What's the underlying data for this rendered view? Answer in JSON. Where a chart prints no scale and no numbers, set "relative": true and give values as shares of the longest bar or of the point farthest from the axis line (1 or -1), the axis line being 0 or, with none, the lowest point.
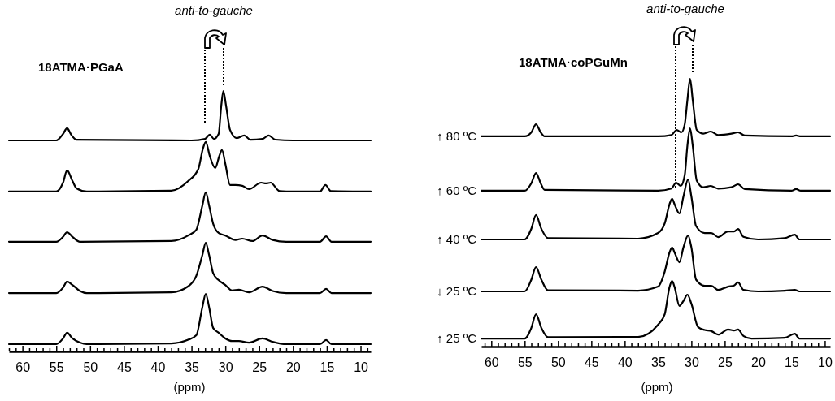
{
  "chart_data": [
    {
      "type": "line",
      "title": "18ATMA·PGaA",
      "xlabel": "(ppm)",
      "relative": true,
      "annotations": [
        "anti-to-gauche"
      ],
      "xlim": [
        62,
        8.5
      ],
      "xticks": [
        {
          "value": 62,
          "label": null
        },
        {
          "value": 61,
          "label": null
        },
        60,
        {
          "value": 59,
          "label": null
        },
        {
          "value": 58,
          "label": null
        },
        {
          "value": 57,
          "label": null
        },
        {
          "value": 56,
          "label": null
        },
        55,
        {
          "value": 54,
          "label": null
        },
        {
          "value": 53,
          "label": null
        },
        {
          "value": 52,
          "label": null
        },
        {
          "value": 51,
          "label": null
        },
        50,
        {
          "value": 49,
          "label": null
        },
        {
          "value": 48,
          "label": null
        },
        {
          "value": 47,
          "label": null
        },
        {
          "value": 46,
          "label": null
        },
        45,
        {
          "value": 44,
          "label": null
        },
        {
          "value": 43,
          "label": null
        },
        {
          "value": 42,
          "label": null
        },
        {
          "value": 41,
          "label": null
        },
        40,
        {
          "value": 39,
          "label": null
        },
        {
          "value": 38,
          "label": null
        },
        {
          "value": 37,
          "label": null
        },
        {
          "value": 36,
          "label": null
        },
        35,
        {
          "value": 34,
          "label": null
        },
        {
          "value": 33,
          "label": null
        },
        {
          "value": 32,
          "label": null
        },
        {
          "value": 31,
          "label": null
        },
        30,
        {
          "value": 29,
          "label": null
        },
        {
          "value": 28,
          "label": null
        },
        {
          "value": 27,
          "label": null
        },
        {
          "value": 26,
          "label": null
        },
        25,
        {
          "value": 24,
          "label": null
        },
        {
          "value": 23,
          "label": null
        },
        {
          "value": 22,
          "label": null
        },
        {
          "value": 21,
          "label": null
        },
        20,
        {
          "value": 19,
          "label": null
        },
        {
          "value": 18,
          "label": null
        },
        {
          "value": 17,
          "label": null
        },
        {
          "value": 16,
          "label": null
        },
        15,
        {
          "value": 14,
          "label": null
        },
        {
          "value": 13,
          "label": null
        },
        {
          "value": 12,
          "label": null
        },
        {
          "value": 11,
          "label": null
        },
        10,
        {
          "value": 9,
          "label": null
        }
      ],
      "series": [
        {
          "color": "#000000",
          "x": [
            62,
            55,
            54,
            53.4,
            52.8,
            52,
            35,
            33,
            32.3,
            31.7,
            31,
            30.6,
            30.3,
            29.9,
            29.3,
            28.3,
            27.2,
            26.3,
            24.5,
            23.6,
            22.6,
            20,
            8.5
          ],
          "values": [
            0.81,
            0.81,
            0.835,
            0.857,
            0.832,
            0.813,
            0.81,
            0.816,
            0.832,
            0.816,
            0.835,
            0.944,
            1.0,
            0.944,
            0.85,
            0.819,
            0.829,
            0.813,
            0.816,
            0.829,
            0.813,
            0.81,
            0.81
          ]
        },
        {
          "color": "#000000",
          "x": [
            62,
            55,
            54,
            53.4,
            52.6,
            52,
            50.5,
            38,
            35.5,
            34,
            33.3,
            32.9,
            32.3,
            31.5,
            30.9,
            30.5,
            30,
            29.3,
            28.5,
            27.5,
            26.5,
            24.7,
            24,
            23.3,
            22,
            20,
            16,
            15.2,
            14.4,
            8.5
          ],
          "values": [
            0.614,
            0.614,
            0.648,
            0.695,
            0.654,
            0.626,
            0.614,
            0.617,
            0.654,
            0.7,
            0.78,
            0.804,
            0.75,
            0.704,
            0.75,
            0.773,
            0.72,
            0.639,
            0.639,
            0.636,
            0.623,
            0.648,
            0.645,
            0.648,
            0.616,
            0.614,
            0.614,
            0.639,
            0.616,
            0.614
          ]
        },
        {
          "color": "#000000",
          "x": [
            62,
            55,
            54,
            53.4,
            52.6,
            51.5,
            38,
            35.5,
            34.3,
            33.4,
            32.9,
            32.4,
            31.8,
            31,
            30,
            28.5,
            27.5,
            26,
            24.5,
            23,
            21,
            16,
            15.1,
            14.3,
            8.5
          ],
          "values": [
            0.421,
            0.421,
            0.44,
            0.458,
            0.44,
            0.421,
            0.424,
            0.445,
            0.467,
            0.56,
            0.611,
            0.56,
            0.49,
            0.455,
            0.445,
            0.428,
            0.433,
            0.424,
            0.445,
            0.428,
            0.421,
            0.421,
            0.442,
            0.421,
            0.421
          ]
        },
        {
          "color": "#000000",
          "x": [
            62,
            55,
            54,
            53.4,
            52.6,
            51.5,
            50.5,
            38,
            35.5,
            34.3,
            33.4,
            32.9,
            32.4,
            31.8,
            31,
            30,
            29,
            28,
            26.5,
            24.5,
            23,
            21,
            16,
            15.1,
            14.3,
            8.5
          ],
          "values": [
            0.224,
            0.224,
            0.245,
            0.268,
            0.255,
            0.232,
            0.224,
            0.227,
            0.25,
            0.29,
            0.37,
            0.417,
            0.37,
            0.3,
            0.274,
            0.255,
            0.234,
            0.237,
            0.227,
            0.249,
            0.232,
            0.224,
            0.224,
            0.24,
            0.224,
            0.224
          ]
        },
        {
          "color": "#000000",
          "x": [
            62,
            55,
            54,
            53.4,
            52.6,
            51.5,
            50.5,
            38,
            35.5,
            34.3,
            33.4,
            32.9,
            32.4,
            31.8,
            31,
            30,
            29,
            28,
            26.5,
            24.5,
            23,
            21,
            16,
            15.1,
            14.3,
            8.5
          ],
          "values": [
            0.028,
            0.028,
            0.05,
            0.072,
            0.05,
            0.034,
            0.028,
            0.031,
            0.045,
            0.062,
            0.17,
            0.221,
            0.17,
            0.09,
            0.072,
            0.05,
            0.04,
            0.04,
            0.034,
            0.05,
            0.037,
            0.028,
            0.028,
            0.044,
            0.028,
            0.028
          ]
        }
      ]
    },
    {
      "type": "line",
      "title": "18ATMA·coPGuMn",
      "xlabel": "(ppm)",
      "relative": true,
      "annotations": [
        "anti-to-gauche"
      ],
      "xlim": [
        61.5,
        9.2
      ],
      "xticks": [
        {
          "value": 61,
          "label": null
        },
        60,
        {
          "value": 59,
          "label": null
        },
        {
          "value": 58,
          "label": null
        },
        {
          "value": 57,
          "label": null
        },
        {
          "value": 56,
          "label": null
        },
        55,
        {
          "value": 54,
          "label": null
        },
        {
          "value": 53,
          "label": null
        },
        {
          "value": 52,
          "label": null
        },
        {
          "value": 51,
          "label": null
        },
        50,
        {
          "value": 49,
          "label": null
        },
        {
          "value": 48,
          "label": null
        },
        {
          "value": 47,
          "label": null
        },
        {
          "value": 46,
          "label": null
        },
        45,
        {
          "value": 44,
          "label": null
        },
        {
          "value": 43,
          "label": null
        },
        {
          "value": 42,
          "label": null
        },
        {
          "value": 41,
          "label": null
        },
        40,
        {
          "value": 39,
          "label": null
        },
        {
          "value": 38,
          "label": null
        },
        {
          "value": 37,
          "label": null
        },
        {
          "value": 36,
          "label": null
        },
        35,
        {
          "value": 34,
          "label": null
        },
        {
          "value": 33,
          "label": null
        },
        {
          "value": 32,
          "label": null
        },
        {
          "value": 31,
          "label": null
        },
        30,
        {
          "value": 29,
          "label": null
        },
        {
          "value": 28,
          "label": null
        },
        {
          "value": 27,
          "label": null
        },
        {
          "value": 26,
          "label": null
        },
        25,
        {
          "value": 24,
          "label": null
        },
        {
          "value": 23,
          "label": null
        },
        {
          "value": 22,
          "label": null
        },
        {
          "value": 21,
          "label": null
        },
        20,
        {
          "value": 19,
          "label": null
        },
        {
          "value": 18,
          "label": null
        },
        {
          "value": 17,
          "label": null
        },
        {
          "value": 16,
          "label": null
        },
        15,
        {
          "value": 14,
          "label": null
        },
        {
          "value": 13,
          "label": null
        },
        {
          "value": 12,
          "label": null
        },
        {
          "value": 11,
          "label": null
        },
        10
      ],
      "series": [
        {
          "name": "↑ 80 ºC",
          "color": "#000000",
          "x": [
            61.5,
            55,
            54,
            53.3,
            52.6,
            52,
            35,
            33,
            32.2,
            31.5,
            31,
            30.6,
            30.2,
            29.8,
            29.2,
            28.2,
            27.1,
            26,
            24,
            23,
            22,
            15,
            14.3,
            13.6,
            9.2
          ],
          "values": [
            0.785,
            0.785,
            0.8,
            0.83,
            0.8,
            0.785,
            0.785,
            0.79,
            0.809,
            0.8,
            0.83,
            0.92,
            1.0,
            0.92,
            0.809,
            0.795,
            0.803,
            0.79,
            0.795,
            0.8,
            0.788,
            0.785,
            0.788,
            0.785,
            0.785
          ]
        },
        {
          "name": "↑ 60 ºC",
          "color": "#000000",
          "x": [
            61.5,
            55,
            54,
            53.3,
            52.6,
            52,
            35,
            33,
            32.3,
            31.6,
            31,
            30.6,
            30.2,
            29.8,
            29.2,
            28.2,
            27.1,
            26,
            24,
            23,
            22,
            15,
            14.3,
            13.6,
            9.2
          ],
          "values": [
            0.582,
            0.582,
            0.61,
            0.648,
            0.61,
            0.585,
            0.582,
            0.59,
            0.612,
            0.6,
            0.64,
            0.75,
            0.815,
            0.75,
            0.62,
            0.595,
            0.6,
            0.59,
            0.595,
            0.606,
            0.588,
            0.582,
            0.588,
            0.582,
            0.582
          ]
        },
        {
          "name": "↑ 40 ºC",
          "color": "#000000",
          "x": [
            61.5,
            55,
            54,
            53.3,
            52.5,
            51.5,
            38,
            35,
            34,
            33.3,
            32.9,
            32.5,
            31.8,
            31.2,
            30.5,
            30,
            29.3,
            28,
            27,
            26,
            24.5,
            23.6,
            23,
            22.2,
            20,
            16,
            14.5,
            13.8,
            9.2
          ],
          "values": [
            0.4,
            0.4,
            0.44,
            0.491,
            0.44,
            0.405,
            0.403,
            0.424,
            0.46,
            0.53,
            0.552,
            0.53,
            0.497,
            0.56,
            0.624,
            0.56,
            0.45,
            0.424,
            0.424,
            0.409,
            0.43,
            0.43,
            0.439,
            0.41,
            0.4,
            0.405,
            0.418,
            0.4,
            0.4
          ]
        },
        {
          "name": "↓ 25 ºC",
          "color": "#000000",
          "x": [
            61.5,
            55,
            54,
            53.3,
            52.5,
            51.5,
            38,
            35,
            34,
            33.3,
            32.9,
            32.5,
            31.8,
            31.2,
            30.5,
            30,
            29.3,
            28,
            27,
            26,
            24.5,
            23.6,
            23,
            22.2,
            20,
            16,
            14.5,
            13.8,
            9.2
          ],
          "values": [
            0.206,
            0.206,
            0.25,
            0.297,
            0.25,
            0.21,
            0.209,
            0.224,
            0.28,
            0.35,
            0.37,
            0.35,
            0.315,
            0.37,
            0.415,
            0.37,
            0.25,
            0.227,
            0.227,
            0.212,
            0.224,
            0.228,
            0.24,
            0.212,
            0.206,
            0.209,
            0.212,
            0.206,
            0.206
          ]
        },
        {
          "name": "↑ 25 ºC",
          "color": "#000000",
          "x": [
            61.5,
            55,
            54,
            53.3,
            52.5,
            51.5,
            38,
            35,
            34,
            33.3,
            32.9,
            32.5,
            31.8,
            31.2,
            30.6,
            30,
            29,
            28,
            27,
            26,
            24.5,
            23.6,
            23,
            22.2,
            21,
            16,
            14.5,
            13.8,
            9.2
          ],
          "values": [
            0.03,
            0.03,
            0.07,
            0.121,
            0.07,
            0.035,
            0.036,
            0.082,
            0.121,
            0.22,
            0.245,
            0.22,
            0.152,
            0.17,
            0.194,
            0.16,
            0.073,
            0.062,
            0.058,
            0.045,
            0.064,
            0.06,
            0.064,
            0.04,
            0.03,
            0.033,
            0.048,
            0.03,
            0.03
          ]
        }
      ]
    }
  ]
}
